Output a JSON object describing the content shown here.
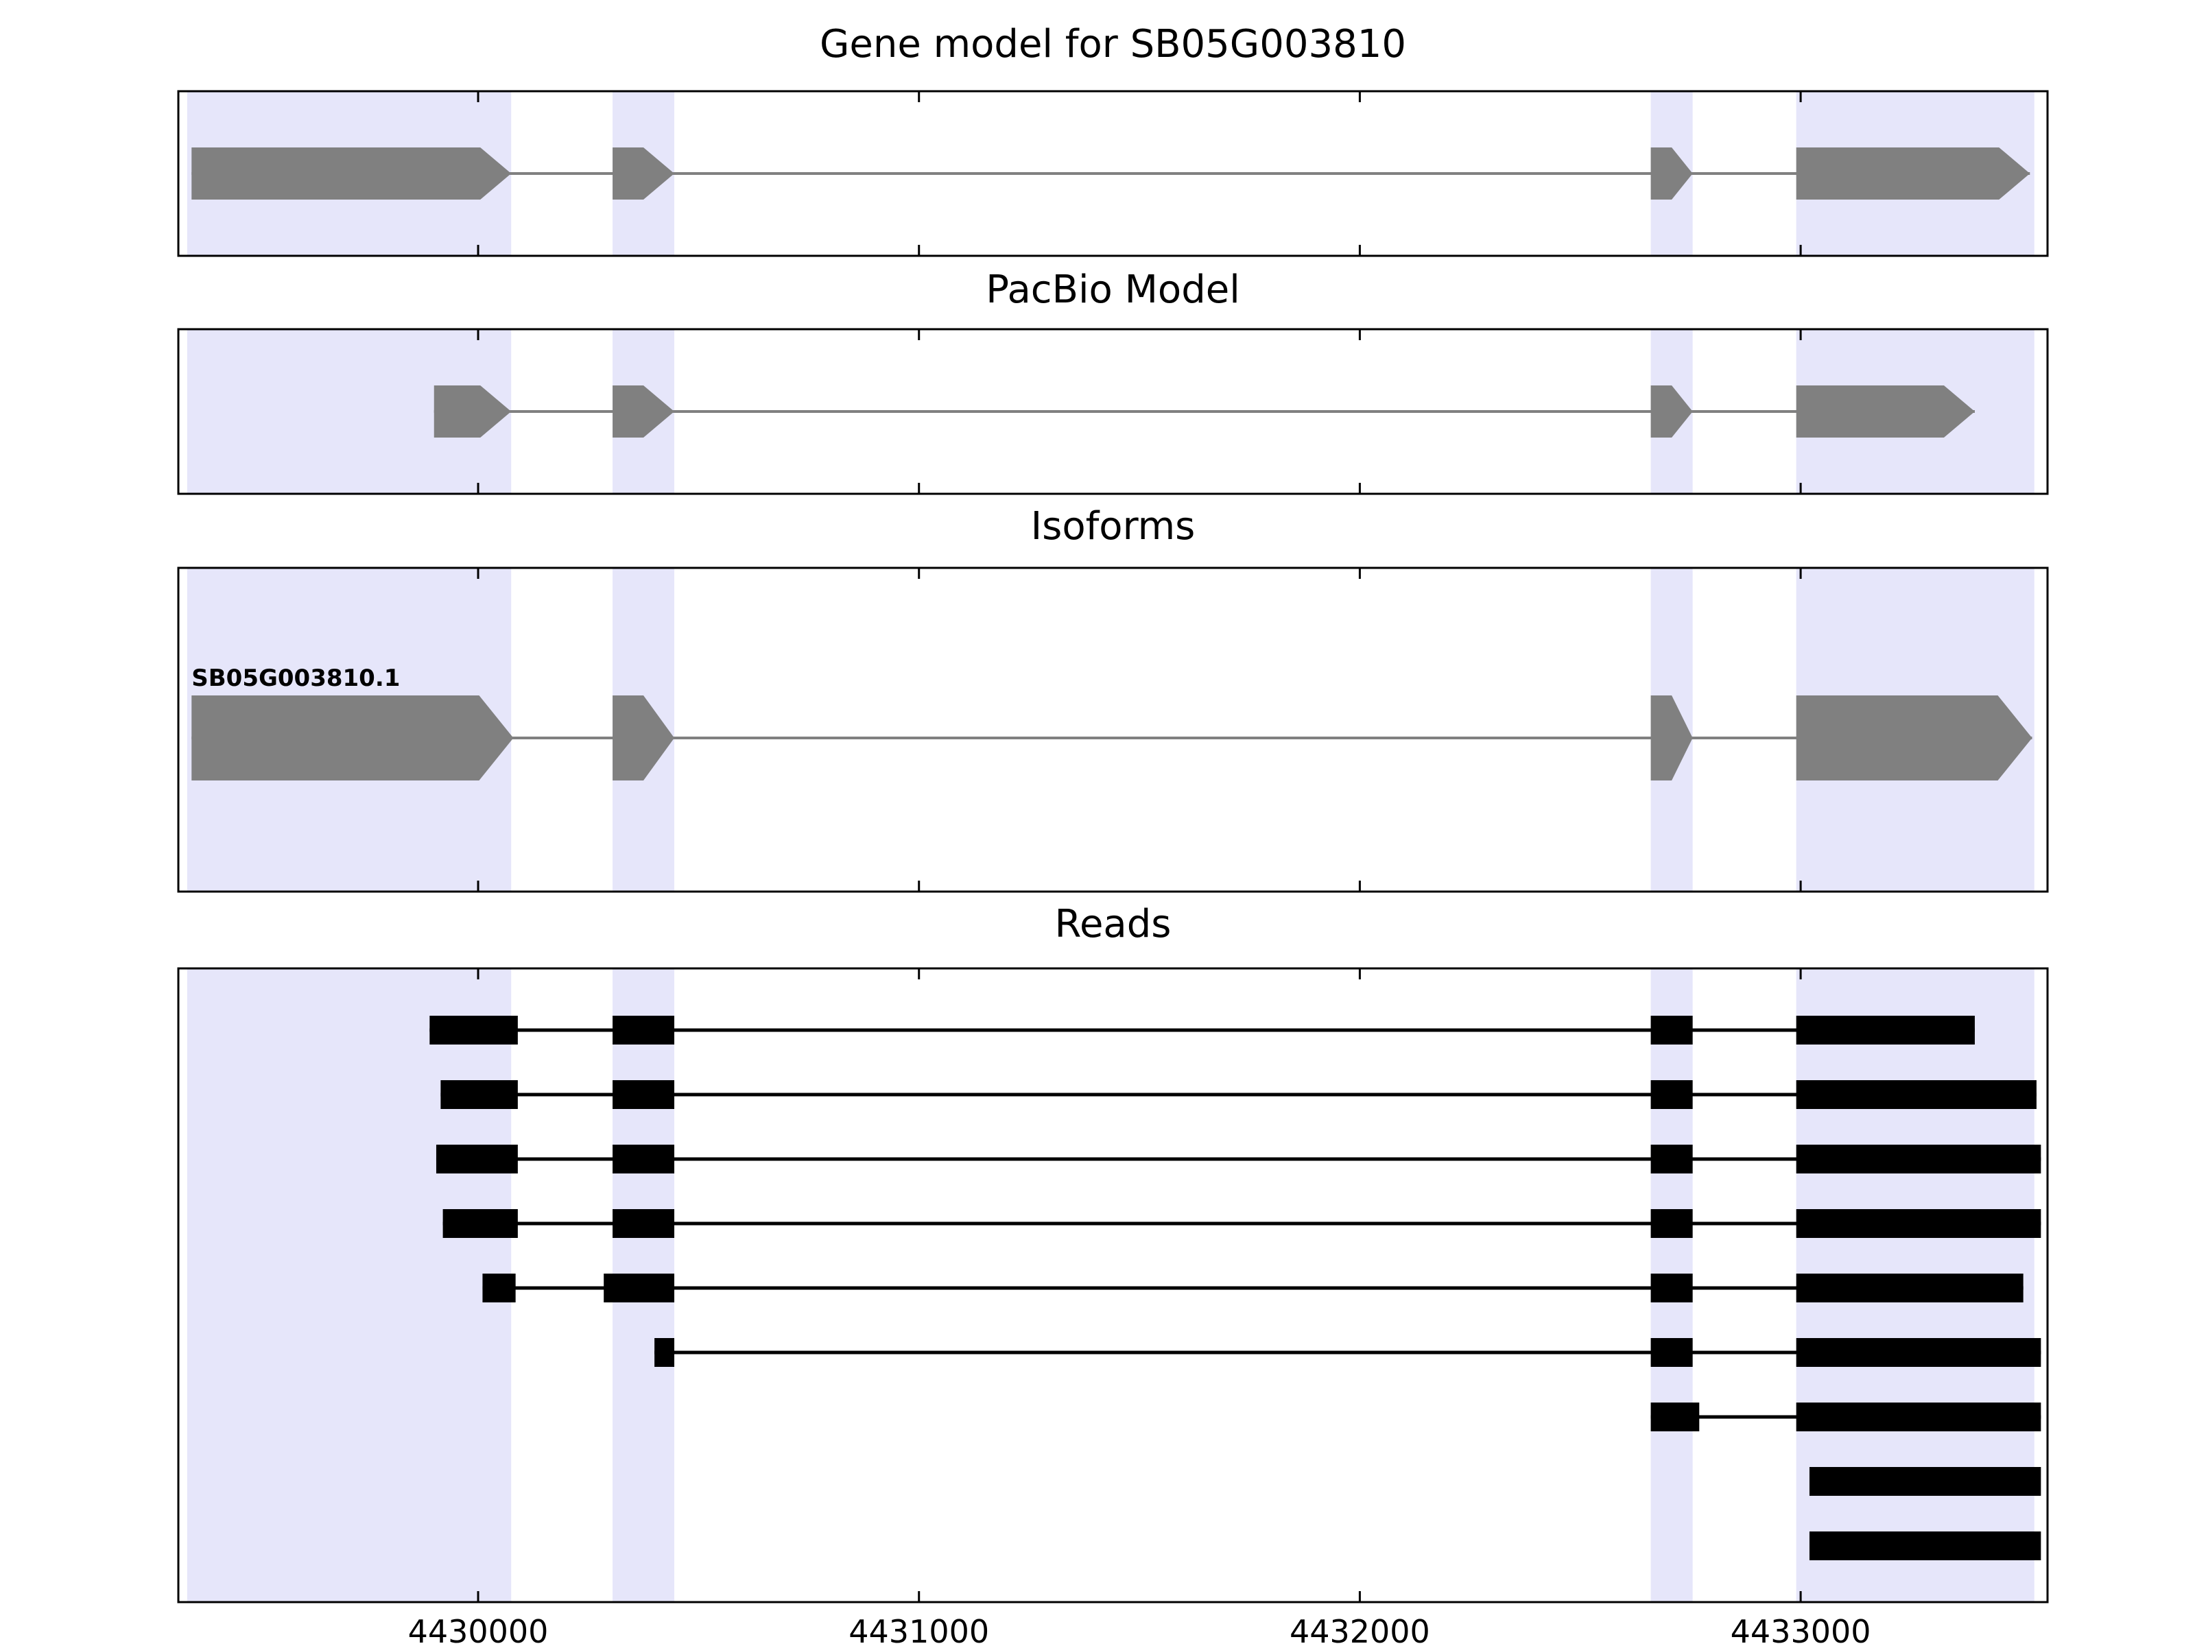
{
  "chart_data": {
    "type": "genome-tracks",
    "title": "Gene model for SB05G003810",
    "axis": {
      "domain": [
        4429320,
        4433560
      ],
      "ticks": [
        4430000,
        4431000,
        4432000,
        4433000
      ],
      "tick_labels": [
        "4430000",
        "4431000",
        "4432000",
        "4433000"
      ]
    },
    "highlight_regions": [
      [
        4429340,
        4430075
      ],
      [
        4430305,
        4430445
      ],
      [
        4432660,
        4432755
      ],
      [
        4432990,
        4433530
      ]
    ],
    "colors": {
      "highlight": "#e6e6fa",
      "model": "#808080",
      "reads": "#000000",
      "border": "#000000",
      "background": "#ffffff"
    },
    "panels": [
      {
        "id": "gene-model",
        "title": "Gene model for SB05G003810",
        "kind": "model",
        "transcripts": [
          {
            "label": "",
            "exons": [
              [
                4429350,
                4430075
              ],
              [
                4430305,
                4430445
              ],
              [
                4432660,
                4432755
              ],
              [
                4432990,
                4433520
              ]
            ]
          }
        ]
      },
      {
        "id": "pacbio-model",
        "title": "PacBio Model",
        "kind": "model",
        "transcripts": [
          {
            "label": "",
            "exons": [
              [
                4429900,
                4430075
              ],
              [
                4430305,
                4430445
              ],
              [
                4432660,
                4432755
              ],
              [
                4432990,
                4433395
              ]
            ]
          }
        ]
      },
      {
        "id": "isoforms",
        "title": "Isoforms",
        "kind": "model",
        "transcripts": [
          {
            "label": "SB05G003810.1",
            "exons": [
              [
                4429350,
                4430080
              ],
              [
                4430305,
                4430445
              ],
              [
                4432660,
                4432755
              ],
              [
                4432990,
                4433525
              ]
            ]
          }
        ]
      },
      {
        "id": "reads",
        "title": "Reads",
        "kind": "reads",
        "reads": [
          {
            "exons": [
              [
                4429890,
                4430090
              ],
              [
                4430305,
                4430445
              ],
              [
                4432660,
                4432755
              ],
              [
                4432990,
                4433395
              ]
            ]
          },
          {
            "exons": [
              [
                4429915,
                4430090
              ],
              [
                4430305,
                4430445
              ],
              [
                4432660,
                4432755
              ],
              [
                4432990,
                4433535
              ]
            ]
          },
          {
            "exons": [
              [
                4429905,
                4430090
              ],
              [
                4430305,
                4430445
              ],
              [
                4432660,
                4432755
              ],
              [
                4432990,
                4433545
              ]
            ]
          },
          {
            "exons": [
              [
                4429920,
                4430090
              ],
              [
                4430305,
                4430445
              ],
              [
                4432660,
                4432755
              ],
              [
                4432990,
                4433545
              ]
            ]
          },
          {
            "exons": [
              [
                4430010,
                4430085
              ],
              [
                4430285,
                4430445
              ],
              [
                4432660,
                4432755
              ],
              [
                4432990,
                4433505
              ]
            ]
          },
          {
            "exons": [
              [
                4430400,
                4430445
              ],
              [
                4432660,
                4432755
              ],
              [
                4432990,
                4433545
              ]
            ]
          },
          {
            "exons": [
              [
                4432660,
                4432770
              ],
              [
                4432990,
                4433545
              ]
            ]
          },
          {
            "exons": [
              [
                4433020,
                4433545
              ]
            ]
          },
          {
            "exons": [
              [
                4433020,
                4433545
              ]
            ]
          }
        ]
      }
    ]
  }
}
